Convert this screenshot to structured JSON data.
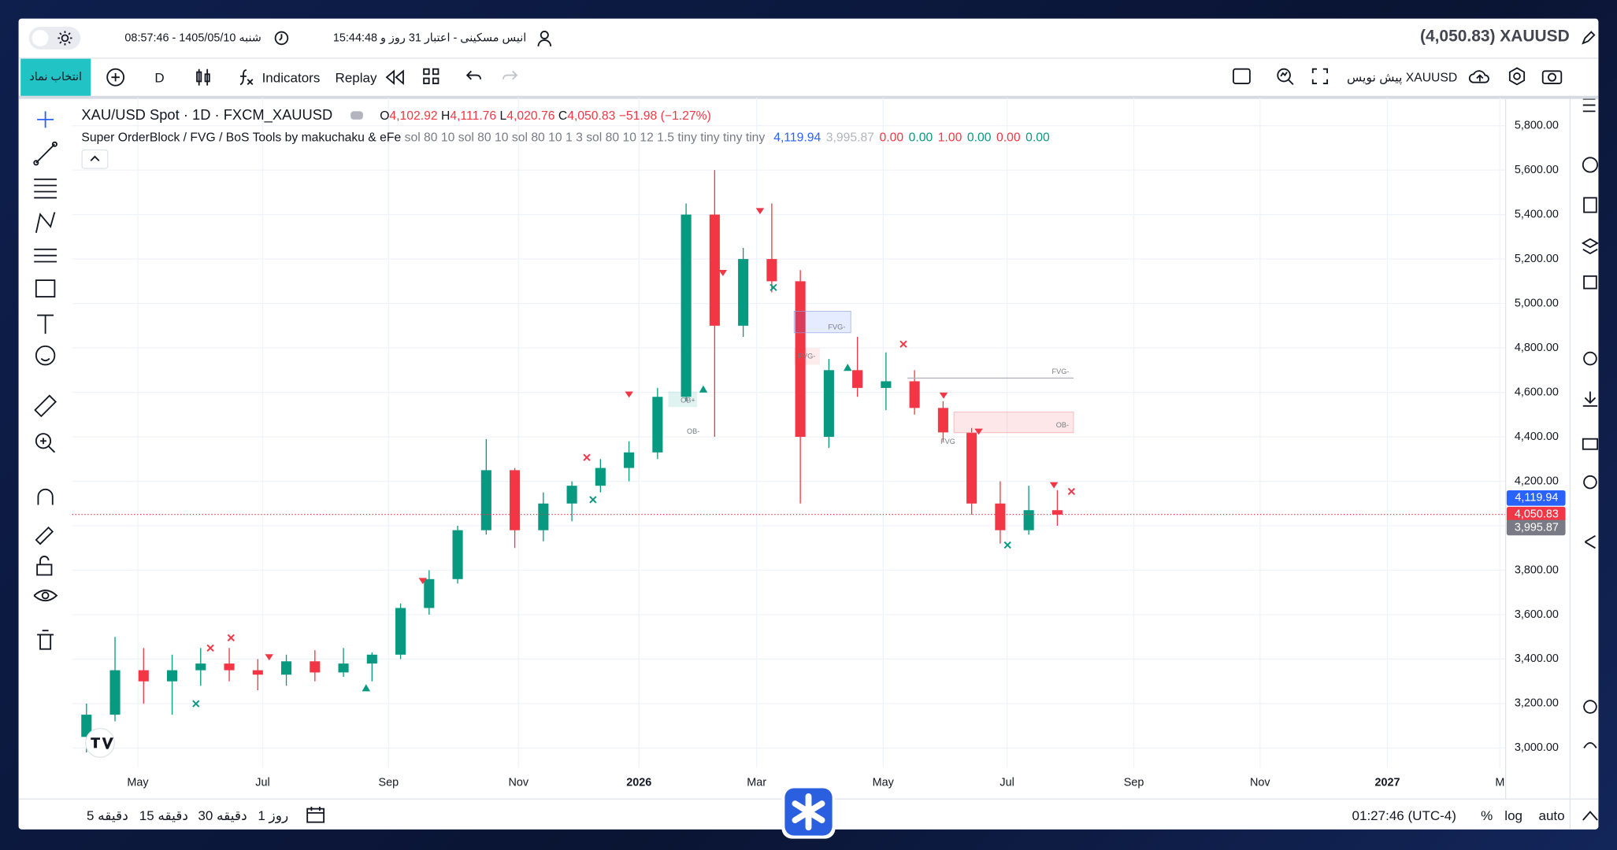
{
  "header": {
    "symbol_price": "(4,050.83) XAUUSD",
    "user": "15:44:48 انیس مسکینی - اعتبار 31 روز و",
    "datetime": "08:57:46 - 1405/05/10 شنبه"
  },
  "toolbar": {
    "select_symbol": "انتخاب نماد",
    "interval": "D",
    "indicators": "Indicators",
    "replay": "Replay",
    "draft": "پیش نویس XAUUSD"
  },
  "legend": {
    "title": "XAU/USD Spot · 1D · FXCM_XAUUSD",
    "o_label": "O",
    "open": "4,102.92",
    "h_label": "H",
    "high": "4,111.76",
    "l_label": "L",
    "low": "4,020.76",
    "c_label": "C",
    "close": "4,050.83",
    "change": "−51.98 (−1.27%)"
  },
  "indicator": {
    "name": "Super OrderBlock / FVG / BoS Tools by makuchaku & eFe",
    "params": "sol 80 10 sol 80 10 sol 80 10 1 3 sol 80 10 12 1.5 tiny tiny tiny tiny",
    "values": [
      {
        "text": "4,119.94",
        "color": "#2962ff"
      },
      {
        "text": "3,995.87",
        "color": "#b2b5be"
      },
      {
        "text": "0.00",
        "color": "#f23645"
      },
      {
        "text": "0.00",
        "color": "#089981"
      },
      {
        "text": "1.00",
        "color": "#f23645"
      },
      {
        "text": "0.00",
        "color": "#089981"
      },
      {
        "text": "0.00",
        "color": "#f23645"
      },
      {
        "text": "0.00",
        "color": "#089981"
      }
    ]
  },
  "chart_data": {
    "type": "candlestick",
    "up_color": "#089981",
    "down_color": "#f23645",
    "grid": true,
    "categories": [
      null,
      null,
      null,
      null,
      null,
      null,
      null,
      null,
      null,
      null,
      null,
      null,
      null,
      null,
      null,
      null,
      null,
      null,
      null,
      null,
      null,
      null,
      null,
      null,
      null,
      null,
      null,
      null,
      null,
      null,
      null,
      null,
      null,
      null,
      null
    ],
    "open": [
      3050,
      3150,
      3350,
      3300,
      3350,
      3380,
      3350,
      3330,
      3390,
      3340,
      3380,
      3420,
      3630,
      3760,
      3980,
      4250,
      3980,
      4100,
      4180,
      4260,
      4330,
      4580,
      5400,
      4900,
      5200,
      5100,
      4400,
      4700,
      4620,
      4650,
      4530,
      4420,
      4100,
      3980,
      4070
    ],
    "high": [
      3200,
      3500,
      3450,
      3420,
      3450,
      3450,
      3400,
      3420,
      3440,
      3450,
      3430,
      3650,
      3800,
      4000,
      4390,
      4260,
      4150,
      4200,
      4300,
      4380,
      4620,
      5450,
      5600,
      5250,
      5450,
      5150,
      4750,
      4850,
      4780,
      4700,
      4560,
      4440,
      4200,
      4180,
      4160
    ],
    "low": [
      2980,
      3120,
      3200,
      3150,
      3280,
      3300,
      3260,
      3280,
      3300,
      3320,
      3300,
      3400,
      3600,
      3740,
      3960,
      3900,
      3930,
      4020,
      4150,
      4200,
      4300,
      4560,
      4400,
      4850,
      5050,
      4100,
      4350,
      4580,
      4520,
      4500,
      4380,
      4050,
      3920,
      3960,
      4000
    ],
    "close": [
      3150,
      3350,
      3300,
      3350,
      3380,
      3350,
      3330,
      3390,
      3340,
      3380,
      3420,
      3630,
      3760,
      3980,
      4250,
      3980,
      4100,
      4180,
      4260,
      4330,
      4580,
      5400,
      4900,
      5200,
      5100,
      4400,
      4700,
      4620,
      4650,
      4530,
      4420,
      4100,
      3980,
      4070,
      4050
    ],
    "xlim": [
      -0.5,
      49.7
    ],
    "xticks": [
      {
        "value": 1.8,
        "label": "May"
      },
      {
        "value": 6.17,
        "label": "Jul"
      },
      {
        "value": 10.58,
        "label": "Sep"
      },
      {
        "value": 15.13,
        "label": "Nov"
      },
      {
        "value": 19.35,
        "label": "2026"
      },
      {
        "value": 23.47,
        "label": "Mar"
      },
      {
        "value": 27.9,
        "label": "May"
      },
      {
        "value": 32.24,
        "label": "Jul"
      },
      {
        "value": 36.68,
        "label": "Sep"
      },
      {
        "value": 41.1,
        "label": "Nov"
      },
      {
        "value": 45.56,
        "label": "2027"
      },
      {
        "value": 49.5,
        "label": "M"
      }
    ],
    "ylim": [
      2912,
      5925
    ],
    "yticks": [
      {
        "value": 3000,
        "label": "3,000.00"
      },
      {
        "value": 3200,
        "label": "3,200.00"
      },
      {
        "value": 3400,
        "label": "3,400.00"
      },
      {
        "value": 3600,
        "label": "3,600.00"
      },
      {
        "value": 3800,
        "label": "3,800.00"
      },
      {
        "value": 4000,
        "label": "4,000.00"
      },
      {
        "value": 4200,
        "label": "4,200.00"
      },
      {
        "value": 4400,
        "label": "4,400.00"
      },
      {
        "value": 4600,
        "label": "4,600.00"
      },
      {
        "value": 4800,
        "label": "4,800.00"
      },
      {
        "value": 5000,
        "label": "5,000.00"
      },
      {
        "value": 5200,
        "label": "5,200.00"
      },
      {
        "value": 5400,
        "label": "5,400.00"
      },
      {
        "value": 5600,
        "label": "5,600.00"
      },
      {
        "value": 5800,
        "label": "5,800.00"
      }
    ],
    "price_markers": [
      {
        "value": 4119.94,
        "label": "4,119.94",
        "color": "#2962ff"
      },
      {
        "value": 4050.83,
        "label": "4,050.83",
        "color": "#f23645"
      },
      {
        "value": 3995.87,
        "label": "3,995.87",
        "color": "#787b86"
      }
    ],
    "annotations": [
      "FVG-",
      "FVG-",
      "OB-",
      "FVG-",
      "OB-",
      "OB+",
      "FVG"
    ]
  },
  "footer": {
    "intervals": [
      "5 دقیقه",
      "15 دقیقه",
      "30 دقیقه",
      "1 روز"
    ],
    "clock": "01:27:46 (UTC-4)",
    "percent": "%",
    "log": "log",
    "auto": "auto"
  }
}
